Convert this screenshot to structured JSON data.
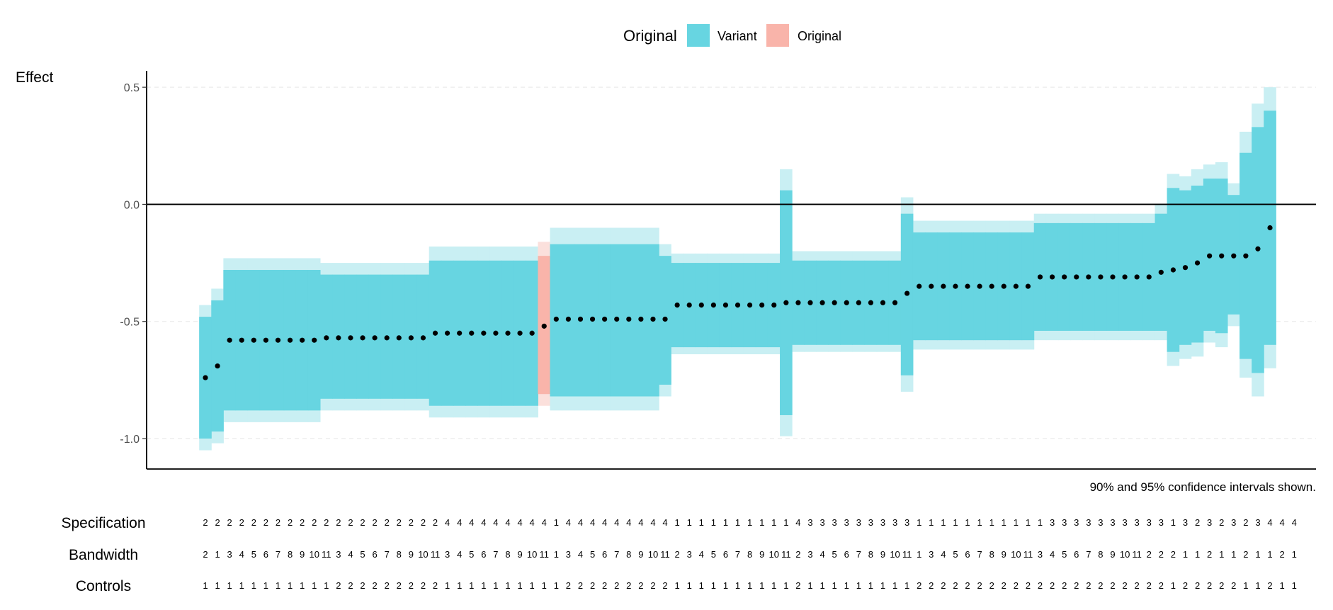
{
  "chart_data": {
    "type": "specification-curve",
    "ylabel": "Effect",
    "yticks": [
      0.5,
      0.0,
      -0.5,
      -1.0
    ],
    "ytick_labels": [
      "0.5",
      "0.0",
      "-0.5",
      "-1.0"
    ],
    "ylim": [
      -1.13,
      0.57
    ],
    "reference_line": 0,
    "legend": {
      "title": "Original",
      "entries": [
        {
          "label": "Variant",
          "color": "#67d5e1",
          "light_color": "#c9eff3"
        },
        {
          "label": "Original",
          "color": "#f9b4aa",
          "light_color": "#fbe0dc"
        }
      ]
    },
    "caption": "90% and 95% confidence intervals shown.",
    "points": [
      {
        "est": -0.74,
        "lo90": -1.0,
        "hi90": -0.48,
        "lo95": -1.05,
        "hi95": -0.43,
        "original": false
      },
      {
        "est": -0.69,
        "lo90": -0.97,
        "hi90": -0.41,
        "lo95": -1.02,
        "hi95": -0.36,
        "original": false
      },
      {
        "est": -0.58,
        "lo90": -0.88,
        "hi90": -0.28,
        "lo95": -0.93,
        "hi95": -0.23,
        "original": false
      },
      {
        "est": -0.58,
        "lo90": -0.88,
        "hi90": -0.28,
        "lo95": -0.93,
        "hi95": -0.23,
        "original": false
      },
      {
        "est": -0.58,
        "lo90": -0.88,
        "hi90": -0.28,
        "lo95": -0.93,
        "hi95": -0.23,
        "original": false
      },
      {
        "est": -0.58,
        "lo90": -0.88,
        "hi90": -0.28,
        "lo95": -0.93,
        "hi95": -0.23,
        "original": false
      },
      {
        "est": -0.58,
        "lo90": -0.88,
        "hi90": -0.28,
        "lo95": -0.93,
        "hi95": -0.23,
        "original": false
      },
      {
        "est": -0.58,
        "lo90": -0.88,
        "hi90": -0.28,
        "lo95": -0.93,
        "hi95": -0.23,
        "original": false
      },
      {
        "est": -0.58,
        "lo90": -0.88,
        "hi90": -0.28,
        "lo95": -0.93,
        "hi95": -0.23,
        "original": false
      },
      {
        "est": -0.58,
        "lo90": -0.88,
        "hi90": -0.28,
        "lo95": -0.93,
        "hi95": -0.23,
        "original": false
      },
      {
        "est": -0.57,
        "lo90": -0.83,
        "hi90": -0.3,
        "lo95": -0.88,
        "hi95": -0.25,
        "original": false
      },
      {
        "est": -0.57,
        "lo90": -0.83,
        "hi90": -0.3,
        "lo95": -0.88,
        "hi95": -0.25,
        "original": false
      },
      {
        "est": -0.57,
        "lo90": -0.83,
        "hi90": -0.3,
        "lo95": -0.88,
        "hi95": -0.25,
        "original": false
      },
      {
        "est": -0.57,
        "lo90": -0.83,
        "hi90": -0.3,
        "lo95": -0.88,
        "hi95": -0.25,
        "original": false
      },
      {
        "est": -0.57,
        "lo90": -0.83,
        "hi90": -0.3,
        "lo95": -0.88,
        "hi95": -0.25,
        "original": false
      },
      {
        "est": -0.57,
        "lo90": -0.83,
        "hi90": -0.3,
        "lo95": -0.88,
        "hi95": -0.25,
        "original": false
      },
      {
        "est": -0.57,
        "lo90": -0.83,
        "hi90": -0.3,
        "lo95": -0.88,
        "hi95": -0.25,
        "original": false
      },
      {
        "est": -0.57,
        "lo90": -0.83,
        "hi90": -0.3,
        "lo95": -0.88,
        "hi95": -0.25,
        "original": false
      },
      {
        "est": -0.57,
        "lo90": -0.83,
        "hi90": -0.3,
        "lo95": -0.88,
        "hi95": -0.25,
        "original": false
      },
      {
        "est": -0.55,
        "lo90": -0.86,
        "hi90": -0.24,
        "lo95": -0.91,
        "hi95": -0.18,
        "original": false
      },
      {
        "est": -0.55,
        "lo90": -0.86,
        "hi90": -0.24,
        "lo95": -0.91,
        "hi95": -0.18,
        "original": false
      },
      {
        "est": -0.55,
        "lo90": -0.86,
        "hi90": -0.24,
        "lo95": -0.91,
        "hi95": -0.18,
        "original": false
      },
      {
        "est": -0.55,
        "lo90": -0.86,
        "hi90": -0.24,
        "lo95": -0.91,
        "hi95": -0.18,
        "original": false
      },
      {
        "est": -0.55,
        "lo90": -0.86,
        "hi90": -0.24,
        "lo95": -0.91,
        "hi95": -0.18,
        "original": false
      },
      {
        "est": -0.55,
        "lo90": -0.86,
        "hi90": -0.24,
        "lo95": -0.91,
        "hi95": -0.18,
        "original": false
      },
      {
        "est": -0.55,
        "lo90": -0.86,
        "hi90": -0.24,
        "lo95": -0.91,
        "hi95": -0.18,
        "original": false
      },
      {
        "est": -0.55,
        "lo90": -0.86,
        "hi90": -0.24,
        "lo95": -0.91,
        "hi95": -0.18,
        "original": false
      },
      {
        "est": -0.55,
        "lo90": -0.86,
        "hi90": -0.24,
        "lo95": -0.91,
        "hi95": -0.18,
        "original": false
      },
      {
        "est": -0.52,
        "lo90": -0.81,
        "hi90": -0.22,
        "lo95": -0.86,
        "hi95": -0.16,
        "original": true
      },
      {
        "est": -0.49,
        "lo90": -0.82,
        "hi90": -0.17,
        "lo95": -0.88,
        "hi95": -0.1,
        "original": false
      },
      {
        "est": -0.49,
        "lo90": -0.82,
        "hi90": -0.17,
        "lo95": -0.88,
        "hi95": -0.1,
        "original": false
      },
      {
        "est": -0.49,
        "lo90": -0.82,
        "hi90": -0.17,
        "lo95": -0.88,
        "hi95": -0.1,
        "original": false
      },
      {
        "est": -0.49,
        "lo90": -0.82,
        "hi90": -0.17,
        "lo95": -0.88,
        "hi95": -0.1,
        "original": false
      },
      {
        "est": -0.49,
        "lo90": -0.82,
        "hi90": -0.17,
        "lo95": -0.88,
        "hi95": -0.1,
        "original": false
      },
      {
        "est": -0.49,
        "lo90": -0.82,
        "hi90": -0.17,
        "lo95": -0.88,
        "hi95": -0.1,
        "original": false
      },
      {
        "est": -0.49,
        "lo90": -0.82,
        "hi90": -0.17,
        "lo95": -0.88,
        "hi95": -0.1,
        "original": false
      },
      {
        "est": -0.49,
        "lo90": -0.82,
        "hi90": -0.17,
        "lo95": -0.88,
        "hi95": -0.1,
        "original": false
      },
      {
        "est": -0.49,
        "lo90": -0.82,
        "hi90": -0.17,
        "lo95": -0.88,
        "hi95": -0.1,
        "original": false
      },
      {
        "est": -0.49,
        "lo90": -0.77,
        "hi90": -0.22,
        "lo95": -0.82,
        "hi95": -0.17,
        "original": false
      },
      {
        "est": -0.43,
        "lo90": -0.61,
        "hi90": -0.25,
        "lo95": -0.64,
        "hi95": -0.21,
        "original": false
      },
      {
        "est": -0.43,
        "lo90": -0.61,
        "hi90": -0.25,
        "lo95": -0.64,
        "hi95": -0.21,
        "original": false
      },
      {
        "est": -0.43,
        "lo90": -0.61,
        "hi90": -0.25,
        "lo95": -0.64,
        "hi95": -0.21,
        "original": false
      },
      {
        "est": -0.43,
        "lo90": -0.61,
        "hi90": -0.25,
        "lo95": -0.64,
        "hi95": -0.21,
        "original": false
      },
      {
        "est": -0.43,
        "lo90": -0.61,
        "hi90": -0.25,
        "lo95": -0.64,
        "hi95": -0.21,
        "original": false
      },
      {
        "est": -0.43,
        "lo90": -0.61,
        "hi90": -0.25,
        "lo95": -0.64,
        "hi95": -0.21,
        "original": false
      },
      {
        "est": -0.43,
        "lo90": -0.61,
        "hi90": -0.25,
        "lo95": -0.64,
        "hi95": -0.21,
        "original": false
      },
      {
        "est": -0.43,
        "lo90": -0.61,
        "hi90": -0.25,
        "lo95": -0.64,
        "hi95": -0.21,
        "original": false
      },
      {
        "est": -0.43,
        "lo90": -0.61,
        "hi90": -0.25,
        "lo95": -0.64,
        "hi95": -0.21,
        "original": false
      },
      {
        "est": -0.42,
        "lo90": -0.9,
        "hi90": 0.06,
        "lo95": -0.99,
        "hi95": 0.15,
        "original": false
      },
      {
        "est": -0.42,
        "lo90": -0.6,
        "hi90": -0.24,
        "lo95": -0.63,
        "hi95": -0.2,
        "original": false
      },
      {
        "est": -0.42,
        "lo90": -0.6,
        "hi90": -0.24,
        "lo95": -0.63,
        "hi95": -0.2,
        "original": false
      },
      {
        "est": -0.42,
        "lo90": -0.6,
        "hi90": -0.24,
        "lo95": -0.63,
        "hi95": -0.2,
        "original": false
      },
      {
        "est": -0.42,
        "lo90": -0.6,
        "hi90": -0.24,
        "lo95": -0.63,
        "hi95": -0.2,
        "original": false
      },
      {
        "est": -0.42,
        "lo90": -0.6,
        "hi90": -0.24,
        "lo95": -0.63,
        "hi95": -0.2,
        "original": false
      },
      {
        "est": -0.42,
        "lo90": -0.6,
        "hi90": -0.24,
        "lo95": -0.63,
        "hi95": -0.2,
        "original": false
      },
      {
        "est": -0.42,
        "lo90": -0.6,
        "hi90": -0.24,
        "lo95": -0.63,
        "hi95": -0.2,
        "original": false
      },
      {
        "est": -0.42,
        "lo90": -0.6,
        "hi90": -0.24,
        "lo95": -0.63,
        "hi95": -0.2,
        "original": false
      },
      {
        "est": -0.42,
        "lo90": -0.6,
        "hi90": -0.24,
        "lo95": -0.63,
        "hi95": -0.2,
        "original": false
      },
      {
        "est": -0.38,
        "lo90": -0.73,
        "hi90": -0.04,
        "lo95": -0.8,
        "hi95": 0.03,
        "original": false
      },
      {
        "est": -0.35,
        "lo90": -0.58,
        "hi90": -0.12,
        "lo95": -0.62,
        "hi95": -0.07,
        "original": false
      },
      {
        "est": -0.35,
        "lo90": -0.58,
        "hi90": -0.12,
        "lo95": -0.62,
        "hi95": -0.07,
        "original": false
      },
      {
        "est": -0.35,
        "lo90": -0.58,
        "hi90": -0.12,
        "lo95": -0.62,
        "hi95": -0.07,
        "original": false
      },
      {
        "est": -0.35,
        "lo90": -0.58,
        "hi90": -0.12,
        "lo95": -0.62,
        "hi95": -0.07,
        "original": false
      },
      {
        "est": -0.35,
        "lo90": -0.58,
        "hi90": -0.12,
        "lo95": -0.62,
        "hi95": -0.07,
        "original": false
      },
      {
        "est": -0.35,
        "lo90": -0.58,
        "hi90": -0.12,
        "lo95": -0.62,
        "hi95": -0.07,
        "original": false
      },
      {
        "est": -0.35,
        "lo90": -0.58,
        "hi90": -0.12,
        "lo95": -0.62,
        "hi95": -0.07,
        "original": false
      },
      {
        "est": -0.35,
        "lo90": -0.58,
        "hi90": -0.12,
        "lo95": -0.62,
        "hi95": -0.07,
        "original": false
      },
      {
        "est": -0.35,
        "lo90": -0.58,
        "hi90": -0.12,
        "lo95": -0.62,
        "hi95": -0.07,
        "original": false
      },
      {
        "est": -0.35,
        "lo90": -0.58,
        "hi90": -0.12,
        "lo95": -0.62,
        "hi95": -0.07,
        "original": false
      },
      {
        "est": -0.31,
        "lo90": -0.54,
        "hi90": -0.08,
        "lo95": -0.58,
        "hi95": -0.04,
        "original": false
      },
      {
        "est": -0.31,
        "lo90": -0.54,
        "hi90": -0.08,
        "lo95": -0.58,
        "hi95": -0.04,
        "original": false
      },
      {
        "est": -0.31,
        "lo90": -0.54,
        "hi90": -0.08,
        "lo95": -0.58,
        "hi95": -0.04,
        "original": false
      },
      {
        "est": -0.31,
        "lo90": -0.54,
        "hi90": -0.08,
        "lo95": -0.58,
        "hi95": -0.04,
        "original": false
      },
      {
        "est": -0.31,
        "lo90": -0.54,
        "hi90": -0.08,
        "lo95": -0.58,
        "hi95": -0.04,
        "original": false
      },
      {
        "est": -0.31,
        "lo90": -0.54,
        "hi90": -0.08,
        "lo95": -0.58,
        "hi95": -0.04,
        "original": false
      },
      {
        "est": -0.31,
        "lo90": -0.54,
        "hi90": -0.08,
        "lo95": -0.58,
        "hi95": -0.04,
        "original": false
      },
      {
        "est": -0.31,
        "lo90": -0.54,
        "hi90": -0.08,
        "lo95": -0.58,
        "hi95": -0.04,
        "original": false
      },
      {
        "est": -0.31,
        "lo90": -0.54,
        "hi90": -0.08,
        "lo95": -0.58,
        "hi95": -0.04,
        "original": false
      },
      {
        "est": -0.31,
        "lo90": -0.54,
        "hi90": -0.08,
        "lo95": -0.58,
        "hi95": -0.04,
        "original": false
      },
      {
        "est": -0.29,
        "lo90": -0.54,
        "hi90": -0.04,
        "lo95": -0.58,
        "hi95": 0.0,
        "original": false
      },
      {
        "est": -0.28,
        "lo90": -0.63,
        "hi90": 0.07,
        "lo95": -0.69,
        "hi95": 0.13,
        "original": false
      },
      {
        "est": -0.27,
        "lo90": -0.6,
        "hi90": 0.06,
        "lo95": -0.66,
        "hi95": 0.12,
        "original": false
      },
      {
        "est": -0.25,
        "lo90": -0.59,
        "hi90": 0.08,
        "lo95": -0.65,
        "hi95": 0.15,
        "original": false
      },
      {
        "est": -0.22,
        "lo90": -0.54,
        "hi90": 0.11,
        "lo95": -0.59,
        "hi95": 0.17,
        "original": false
      },
      {
        "est": -0.22,
        "lo90": -0.55,
        "hi90": 0.11,
        "lo95": -0.61,
        "hi95": 0.18,
        "original": false
      },
      {
        "est": -0.22,
        "lo90": -0.47,
        "hi90": 0.04,
        "lo95": -0.52,
        "hi95": 0.09,
        "original": false
      },
      {
        "est": -0.22,
        "lo90": -0.66,
        "hi90": 0.22,
        "lo95": -0.74,
        "hi95": 0.31,
        "original": false
      },
      {
        "est": -0.19,
        "lo90": -0.72,
        "hi90": 0.33,
        "lo95": -0.82,
        "hi95": 0.43,
        "original": false
      },
      {
        "est": -0.1,
        "lo90": -0.6,
        "hi90": 0.4,
        "lo95": -0.7,
        "hi95": 0.5,
        "original": false
      }
    ],
    "rows": [
      {
        "label": "Specification",
        "values": [
          "2",
          "2",
          "2",
          "2",
          "2",
          "2",
          "2",
          "2",
          "2",
          "2",
          "2",
          "2",
          "2",
          "2",
          "2",
          "2",
          "2",
          "2",
          "2",
          "2",
          "4",
          "4",
          "4",
          "4",
          "4",
          "4",
          "4",
          "4",
          "4",
          "1",
          "4",
          "4",
          "4",
          "4",
          "4",
          "4",
          "4",
          "4",
          "4",
          "1",
          "1",
          "1",
          "1",
          "1",
          "1",
          "1",
          "1",
          "1",
          "1",
          "4",
          "3",
          "3",
          "3",
          "3",
          "3",
          "3",
          "3",
          "3",
          "3",
          "1",
          "1",
          "1",
          "1",
          "1",
          "1",
          "1",
          "1",
          "1",
          "1",
          "1",
          "3",
          "3",
          "3",
          "3",
          "3",
          "3",
          "3",
          "3",
          "3",
          "3",
          "1",
          "3",
          "2",
          "3",
          "2",
          "3",
          "2",
          "3",
          "4",
          "4",
          "4"
        ]
      },
      {
        "label": "Bandwidth",
        "values": [
          "2",
          "1",
          "3",
          "4",
          "5",
          "6",
          "7",
          "8",
          "9",
          "10",
          "11",
          "3",
          "4",
          "5",
          "6",
          "7",
          "8",
          "9",
          "10",
          "11",
          "3",
          "4",
          "5",
          "6",
          "7",
          "8",
          "9",
          "10",
          "11",
          "1",
          "3",
          "4",
          "5",
          "6",
          "7",
          "8",
          "9",
          "10",
          "11",
          "2",
          "3",
          "4",
          "5",
          "6",
          "7",
          "8",
          "9",
          "10",
          "11",
          "2",
          "3",
          "4",
          "5",
          "6",
          "7",
          "8",
          "9",
          "10",
          "11",
          "1",
          "3",
          "4",
          "5",
          "6",
          "7",
          "8",
          "9",
          "10",
          "11",
          "3",
          "4",
          "5",
          "6",
          "7",
          "8",
          "9",
          "10",
          "11",
          "2",
          "2",
          "2",
          "1",
          "1",
          "2",
          "1",
          "1",
          "2",
          "1",
          "1",
          "2",
          "1"
        ]
      },
      {
        "label": "Controls",
        "values": [
          "1",
          "1",
          "1",
          "1",
          "1",
          "1",
          "1",
          "1",
          "1",
          "1",
          "1",
          "2",
          "2",
          "2",
          "2",
          "2",
          "2",
          "2",
          "2",
          "2",
          "1",
          "1",
          "1",
          "1",
          "1",
          "1",
          "1",
          "1",
          "1",
          "1",
          "2",
          "2",
          "2",
          "2",
          "2",
          "2",
          "2",
          "2",
          "2",
          "1",
          "1",
          "1",
          "1",
          "1",
          "1",
          "1",
          "1",
          "1",
          "1",
          "2",
          "1",
          "1",
          "1",
          "1",
          "1",
          "1",
          "1",
          "1",
          "1",
          "2",
          "2",
          "2",
          "2",
          "2",
          "2",
          "2",
          "2",
          "2",
          "2",
          "2",
          "2",
          "2",
          "2",
          "2",
          "2",
          "2",
          "2",
          "2",
          "2",
          "2",
          "1",
          "2",
          "2",
          "2",
          "2",
          "2",
          "1",
          "1",
          "2",
          "1",
          "1"
        ]
      }
    ]
  }
}
